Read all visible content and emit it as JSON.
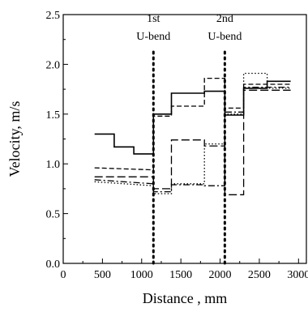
{
  "chart_data": {
    "type": "line",
    "title": "",
    "xlabel": "Distance , mm",
    "ylabel": "Velocity, m/s",
    "xlim": [
      0,
      3100
    ],
    "ylim": [
      0,
      2.5
    ],
    "xticks": [
      "0",
      "500",
      "1000",
      "1500",
      "2000",
      "2500",
      "3000"
    ],
    "yticks": [
      "0.0",
      "0.5",
      "1.0",
      "1.5",
      "2.0",
      "2.5"
    ],
    "grid": false,
    "legend": "none",
    "markers": [
      {
        "x": 1150,
        "line1": "1st",
        "line2": "U-bend"
      },
      {
        "x": 2060,
        "line1": "2nd",
        "line2": "U-bend"
      }
    ],
    "series": [
      {
        "style": "solid",
        "color": "#000000",
        "x": [
          400,
          650,
          650,
          900,
          900,
          1150,
          1150,
          1380,
          1380,
          1800,
          1800,
          2060,
          2060,
          2300,
          2300,
          2600,
          2600,
          2900
        ],
        "y": [
          1.3,
          1.3,
          1.17,
          1.17,
          1.1,
          1.1,
          1.5,
          1.5,
          1.71,
          1.71,
          1.73,
          1.73,
          1.49,
          1.49,
          1.76,
          1.76,
          1.83,
          1.83
        ]
      },
      {
        "style": "dashed",
        "color": "#000000",
        "x": [
          400,
          1150,
          1150,
          1380,
          1380,
          1800,
          1800,
          2060,
          2060,
          2300,
          2300,
          2900
        ],
        "y": [
          0.96,
          0.94,
          1.48,
          1.48,
          1.58,
          1.58,
          1.86,
          1.86,
          1.56,
          1.56,
          1.8,
          1.8
        ]
      },
      {
        "style": "longdash",
        "color": "#000000",
        "x": [
          400,
          1150,
          1150,
          1380,
          1380,
          1800,
          1800,
          2060,
          2060,
          2300,
          2300,
          2900
        ],
        "y": [
          0.87,
          0.87,
          0.75,
          0.75,
          1.24,
          1.24,
          1.18,
          1.18,
          0.69,
          0.69,
          1.74,
          1.74
        ]
      },
      {
        "style": "dashdot",
        "color": "#000000",
        "x": [
          400,
          1150,
          1150,
          1380,
          1380,
          1800,
          1800,
          2060,
          2060,
          2300,
          2300,
          2900
        ],
        "y": [
          0.84,
          0.8,
          0.72,
          0.72,
          0.79,
          0.79,
          0.78,
          0.78,
          1.52,
          1.52,
          1.77,
          1.77
        ]
      },
      {
        "style": "dotted",
        "color": "#000000",
        "x": [
          400,
          1150,
          1150,
          1380,
          1380,
          1800,
          1800,
          2060,
          2060,
          2300,
          2300,
          2600,
          2600,
          2900
        ],
        "y": [
          0.82,
          0.78,
          0.7,
          0.7,
          0.8,
          0.8,
          1.2,
          1.2,
          1.5,
          1.5,
          1.91,
          1.91,
          1.76,
          1.76
        ]
      }
    ]
  }
}
